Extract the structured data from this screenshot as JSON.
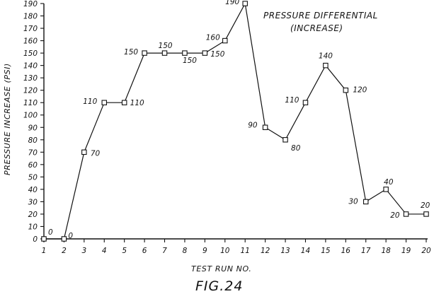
{
  "chart_data": {
    "type": "line",
    "title": "PRESSURE DIFFERENTIAL",
    "subtitle": "(INCREASE)",
    "xlabel": "TEST RUN NO.",
    "ylabel": "PRESSURE INCREASE (PSI)",
    "caption": "FIG.24",
    "x": [
      1,
      2,
      3,
      4,
      5,
      6,
      7,
      8,
      9,
      10,
      11,
      12,
      13,
      14,
      15,
      16,
      17,
      18,
      19,
      20
    ],
    "y": [
      0,
      0,
      70,
      110,
      110,
      150,
      150,
      150,
      150,
      160,
      190,
      90,
      80,
      110,
      140,
      120,
      30,
      40,
      20,
      20
    ],
    "xlim": [
      1,
      20
    ],
    "ylim": [
      0,
      190
    ],
    "y_ticks": [
      0,
      10,
      20,
      30,
      40,
      50,
      60,
      70,
      80,
      90,
      100,
      110,
      120,
      130,
      140,
      150,
      160,
      170,
      180,
      190
    ],
    "x_ticks": [
      1,
      2,
      3,
      4,
      5,
      6,
      7,
      8,
      9,
      10,
      11,
      12,
      13,
      14,
      15,
      16,
      17,
      18,
      19,
      20
    ],
    "data_labels": [
      {
        "x": 1,
        "text": "0"
      },
      {
        "x": 2,
        "text": "0"
      },
      {
        "x": 3,
        "text": "70"
      },
      {
        "x": 4,
        "text": "110"
      },
      {
        "x": 5,
        "text": "110"
      },
      {
        "x": 6,
        "text": "150"
      },
      {
        "x": 7,
        "text": "150"
      },
      {
        "x": 8,
        "text": "150"
      },
      {
        "x": 9,
        "text": "150"
      },
      {
        "x": 10,
        "text": "160"
      },
      {
        "x": 11,
        "text": "190"
      },
      {
        "x": 12,
        "text": "90"
      },
      {
        "x": 13,
        "text": "80"
      },
      {
        "x": 14,
        "text": "110"
      },
      {
        "x": 15,
        "text": "140"
      },
      {
        "x": 16,
        "text": "120"
      },
      {
        "x": 17,
        "text": "30"
      },
      {
        "x": 18,
        "text": "40"
      },
      {
        "x": 19,
        "text": "20"
      },
      {
        "x": 20,
        "text": "20"
      }
    ],
    "grid": false,
    "marker": "square"
  }
}
